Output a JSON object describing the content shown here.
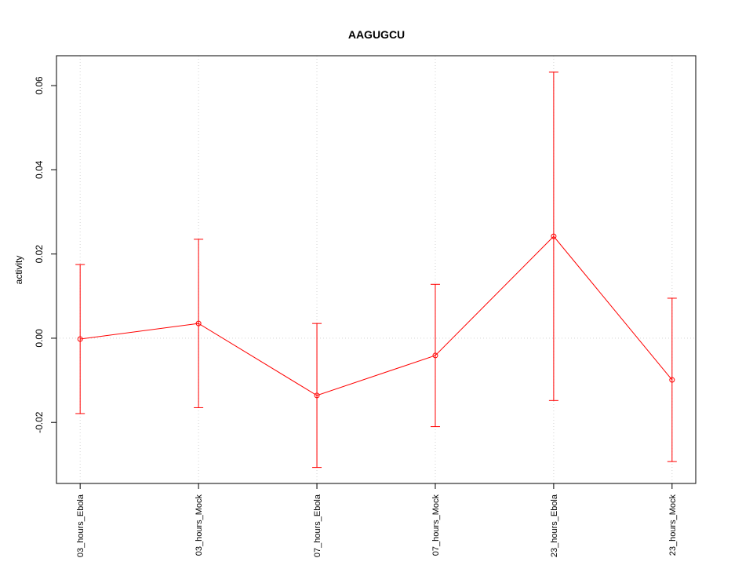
{
  "chart_data": {
    "type": "line",
    "title": "AAGUGCU",
    "ylabel": "activity",
    "categories": [
      "03_hours_Ebola",
      "03_hours_Mock",
      "07_hours_Ebola",
      "07_hours_Mock",
      "23_hours_Ebola",
      "23_hours_Mock"
    ],
    "series": [
      {
        "color": "#ff0000",
        "values": [
          -0.0002,
          0.0035,
          -0.0136,
          -0.0041,
          0.0242,
          -0.0099
        ],
        "errors": [
          0.0177,
          0.02,
          0.0171,
          0.0169,
          0.039,
          0.0194
        ]
      }
    ],
    "ylim": [
      -0.0345,
      0.0671
    ],
    "yticks": [
      {
        "value": -0.02,
        "label": "-0.02"
      },
      {
        "value": 0,
        "label": "0.00"
      },
      {
        "value": 0.02,
        "label": "0.02"
      },
      {
        "value": 0.04,
        "label": "0.04"
      },
      {
        "value": 0.06,
        "label": "0.06"
      }
    ],
    "hline": 0,
    "grid": true
  }
}
